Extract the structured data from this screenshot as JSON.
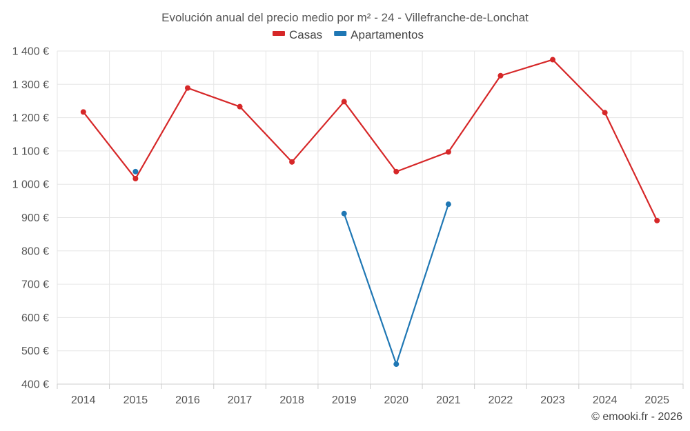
{
  "chart_data": {
    "type": "line",
    "title": "Evolución anual del precio medio por m² - 24 - Villefranche-de-Lonchat",
    "categories": [
      "2014",
      "2015",
      "2016",
      "2017",
      "2018",
      "2019",
      "2020",
      "2021",
      "2022",
      "2023",
      "2024",
      "2025"
    ],
    "series": [
      {
        "name": "Casas",
        "color": "#d62728",
        "values": [
          1217,
          1017,
          1289,
          1233,
          1067,
          1248,
          1038,
          1097,
          1326,
          1374,
          1215,
          891
        ]
      },
      {
        "name": "Apartamentos",
        "color": "#1f77b4",
        "values": [
          null,
          1038,
          null,
          null,
          null,
          912,
          460,
          940,
          null,
          null,
          null,
          null
        ]
      }
    ],
    "ylim": [
      400,
      1400
    ],
    "yticks": [
      400,
      500,
      600,
      700,
      800,
      900,
      1000,
      1100,
      1200,
      1300,
      1400
    ],
    "ytick_labels": [
      "400 €",
      "500 €",
      "600 €",
      "700 €",
      "800 €",
      "900 €",
      "1 000 €",
      "1 100 €",
      "1 200 €",
      "1 300 €",
      "1 400 €"
    ],
    "xlabel": "",
    "ylabel": "",
    "grid": true,
    "legend_position": "top-center"
  },
  "credit": "© emooki.fr - 2026"
}
